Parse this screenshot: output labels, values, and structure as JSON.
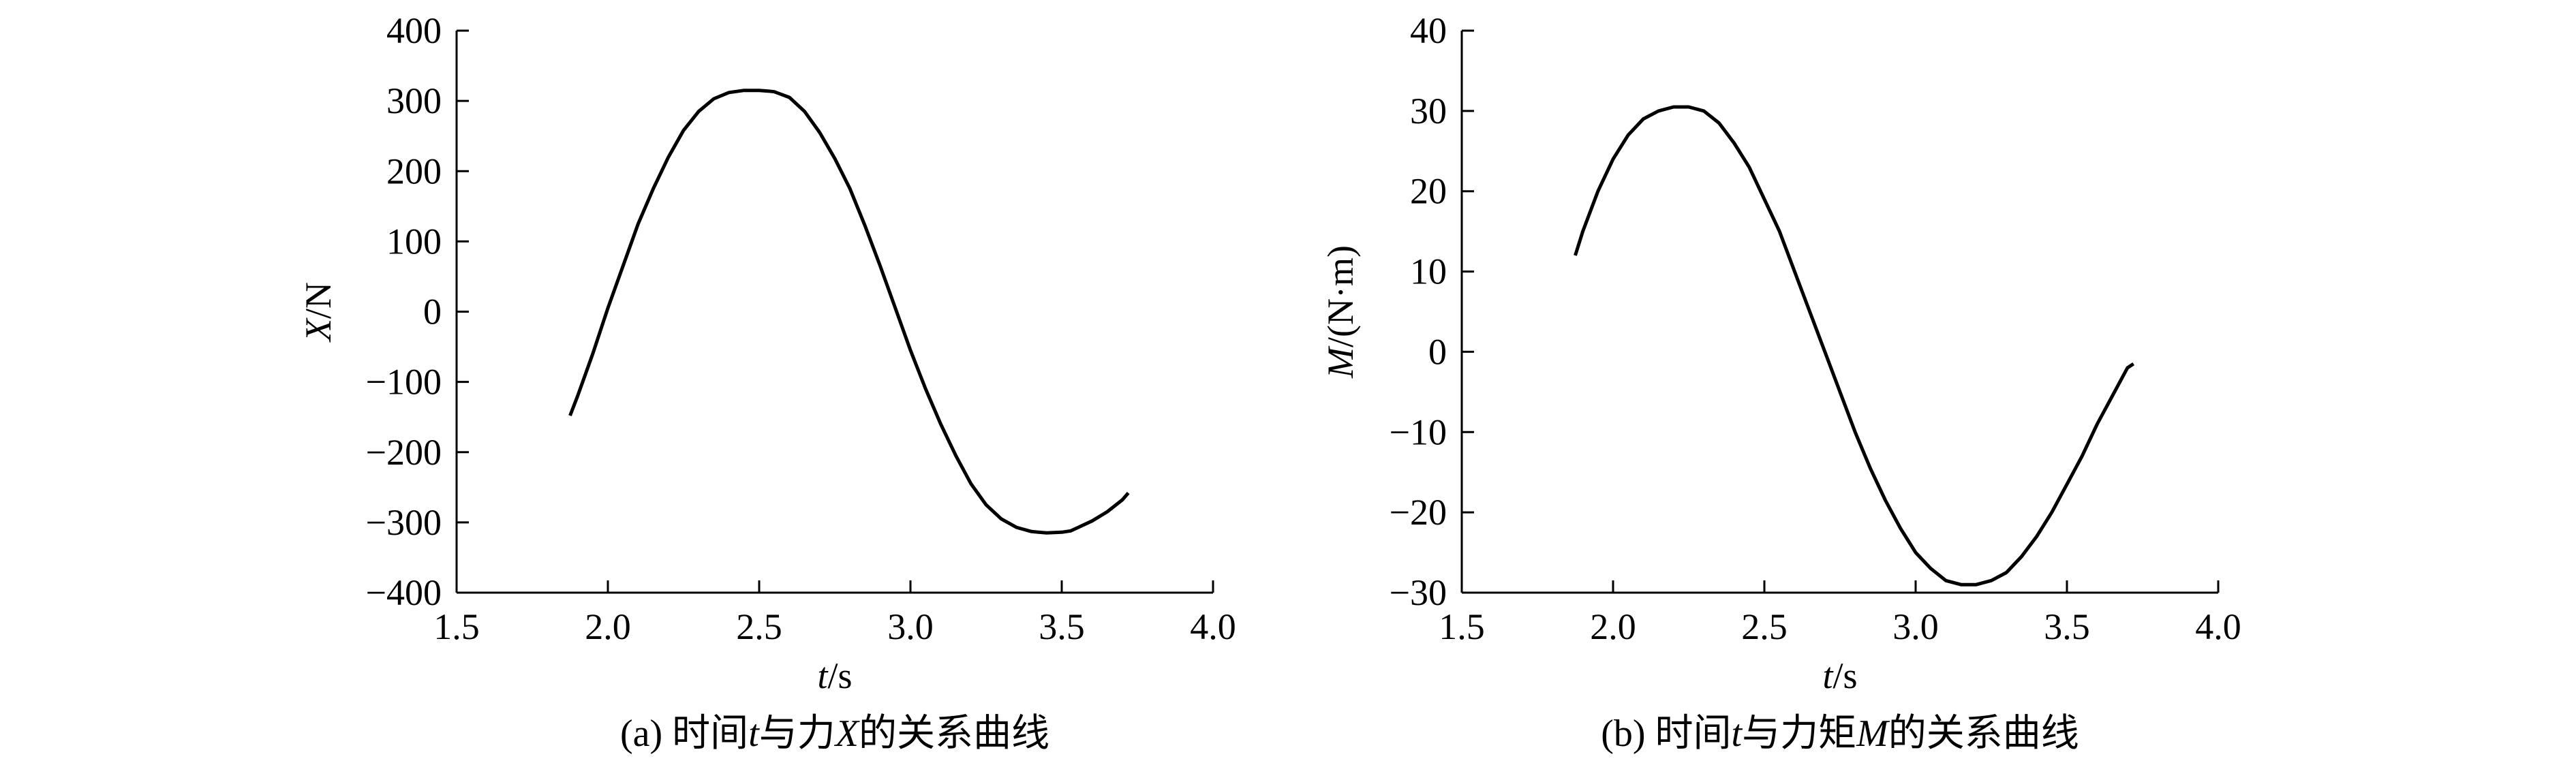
{
  "chart_data": [
    {
      "type": "line",
      "xlabel_italic": "t",
      "xlabel_rest": "/s",
      "ylabel_italic": "X",
      "ylabel_rest": "/N",
      "xlim": [
        1.5,
        4.0
      ],
      "ylim": [
        -400,
        400
      ],
      "xticks": [
        1.5,
        2.0,
        2.5,
        3.0,
        3.5,
        4.0
      ],
      "xtick_labels": [
        "1.5",
        "2.0",
        "2.5",
        "3.0",
        "3.5",
        "4.0"
      ],
      "yticks": [
        400,
        300,
        200,
        100,
        0,
        -100,
        -200,
        -300,
        -400
      ],
      "ytick_labels": [
        "400",
        "300",
        "200",
        "100",
        "0",
        "−100",
        "−200",
        "−300",
        "−400"
      ],
      "grid": false,
      "caption_parts": [
        "(a) 时间",
        "t",
        "与力",
        "X",
        "的关系曲线"
      ],
      "series": [
        {
          "x": [
            1.875,
            1.9,
            1.95,
            2.0,
            2.05,
            2.1,
            2.15,
            2.2,
            2.25,
            2.3,
            2.35,
            2.4,
            2.45,
            2.5,
            2.53,
            2.55,
            2.6,
            2.65,
            2.7,
            2.75,
            2.8,
            2.85,
            2.9,
            2.95,
            3.0,
            3.05,
            3.1,
            3.15,
            3.2,
            3.25,
            3.3,
            3.35,
            3.4,
            3.45,
            3.5,
            3.53,
            3.55,
            3.6,
            3.65,
            3.7,
            3.72
          ],
          "values": [
            -148,
            -120,
            -60,
            5,
            65,
            125,
            175,
            220,
            258,
            285,
            303,
            312,
            315,
            315,
            314,
            313,
            305,
            285,
            255,
            218,
            175,
            122,
            65,
            5,
            -55,
            -110,
            -160,
            -205,
            -245,
            -275,
            -295,
            -307,
            -313,
            -315,
            -314,
            -312,
            -308,
            -298,
            -285,
            -268,
            -258
          ]
        }
      ]
    },
    {
      "type": "line",
      "xlabel_italic": "t",
      "xlabel_rest": "/s",
      "ylabel_italic": "M",
      "ylabel_rest": "/(N·m)",
      "xlim": [
        1.5,
        4.0
      ],
      "ylim": [
        -30,
        40
      ],
      "xticks": [
        1.5,
        2.0,
        2.5,
        3.0,
        3.5,
        4.0
      ],
      "xtick_labels": [
        "1.5",
        "2.0",
        "2.5",
        "3.0",
        "3.5",
        "4.0"
      ],
      "yticks": [
        40,
        30,
        20,
        10,
        0,
        -10,
        -20,
        -30
      ],
      "ytick_labels": [
        "40",
        "30",
        "20",
        "10",
        "0",
        "−10",
        "−20",
        "−30"
      ],
      "grid": false,
      "caption_parts": [
        "(b) 时间",
        "t",
        "与力矩",
        "M",
        "的关系曲线"
      ],
      "series": [
        {
          "x": [
            1.875,
            1.9,
            1.95,
            2.0,
            2.05,
            2.1,
            2.15,
            2.2,
            2.25,
            2.3,
            2.35,
            2.4,
            2.45,
            2.5,
            2.55,
            2.6,
            2.65,
            2.7,
            2.75,
            2.8,
            2.85,
            2.9,
            2.95,
            3.0,
            3.05,
            3.1,
            3.15,
            3.2,
            3.25,
            3.3,
            3.35,
            3.4,
            3.45,
            3.5,
            3.55,
            3.6,
            3.65,
            3.7,
            3.72
          ],
          "values": [
            12,
            15,
            20,
            24,
            27,
            29,
            30,
            30.5,
            30.5,
            30,
            28.5,
            26,
            23,
            19,
            15,
            10,
            5,
            0,
            -5,
            -10,
            -14.5,
            -18.5,
            -22,
            -25,
            -27,
            -28.5,
            -29,
            -29,
            -28.5,
            -27.5,
            -25.5,
            -23,
            -20,
            -16.5,
            -13,
            -9,
            -5.5,
            -2,
            -1.5
          ]
        }
      ]
    }
  ]
}
